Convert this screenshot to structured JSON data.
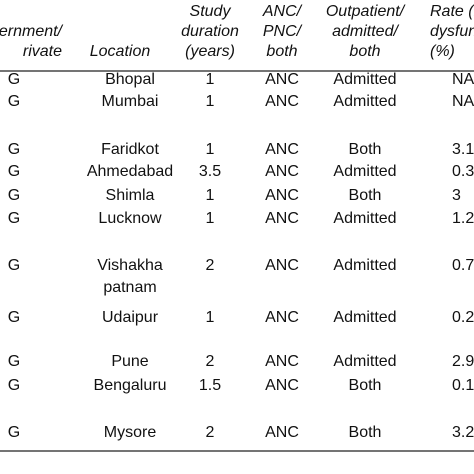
{
  "table": {
    "header": [
      [
        "ernment/",
        "rivate"
      ],
      [
        "Location"
      ],
      [
        "Study",
        "duration",
        "(years)"
      ],
      [
        "ANC/",
        "PNC/",
        "both"
      ],
      [
        "Outpatient/",
        "admitted/",
        "both"
      ],
      [
        "Rate (he",
        "dysfunc",
        "(%)"
      ]
    ],
    "rows": [
      [
        "G",
        "Bhopal",
        "1",
        "ANC",
        "Admitted",
        "NA"
      ],
      [
        "G",
        "Mumbai",
        "1",
        "ANC",
        "Admitted",
        "NA"
      ],
      [
        "G",
        "Faridkot",
        "1",
        "ANC",
        "Both",
        "3.1"
      ],
      [
        "G",
        "Ahmedabad",
        "3.5",
        "ANC",
        "Admitted",
        "0.3"
      ],
      [
        "G",
        "Shimla",
        "1",
        "ANC",
        "Both",
        "3"
      ],
      [
        "G",
        "Lucknow",
        "1",
        "ANC",
        "Admitted",
        "1.2"
      ],
      [
        "G",
        [
          "Vishakha",
          "patnam"
        ],
        "2",
        "ANC",
        "Admitted",
        "0.7"
      ],
      [
        "G",
        "Udaipur",
        "1",
        "ANC",
        "Admitted",
        "0.2"
      ],
      [
        "G",
        "Pune",
        "2",
        "ANC",
        "Admitted",
        "2.9"
      ],
      [
        "G",
        "Bengaluru",
        "1.5",
        "ANC",
        "Both",
        "0.1"
      ],
      [
        "G",
        "Mysore",
        "2",
        "ANC",
        "Both",
        "3.2"
      ]
    ]
  }
}
